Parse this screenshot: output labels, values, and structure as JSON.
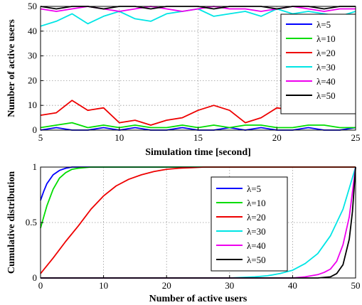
{
  "chart_data": [
    {
      "type": "line",
      "xlabel": "Simulation time [second]",
      "ylabel": "Number of active users",
      "xlim": [
        5,
        25
      ],
      "ylim": [
        0,
        50
      ],
      "xticks": [
        5,
        10,
        15,
        20,
        25
      ],
      "yticks": [
        0,
        10,
        20,
        30,
        40,
        50
      ],
      "grid": true,
      "legend_position": "top-right",
      "series": [
        {
          "name": "λ=5",
          "color": "#0000ff",
          "x": [
            5,
            6,
            7,
            8,
            9,
            10,
            11,
            12,
            13,
            14,
            15,
            16,
            17,
            18,
            19,
            20,
            21,
            22,
            23,
            24,
            25
          ],
          "y": [
            0,
            1,
            0,
            0,
            1,
            0,
            1,
            0,
            0,
            1,
            0,
            0,
            1,
            0,
            1,
            0,
            0,
            1,
            0,
            0,
            1
          ]
        },
        {
          "name": "λ=10",
          "color": "#00dd00",
          "x": [
            5,
            6,
            7,
            8,
            9,
            10,
            11,
            12,
            13,
            14,
            15,
            16,
            17,
            18,
            19,
            20,
            21,
            22,
            23,
            24,
            25
          ],
          "y": [
            1,
            2,
            3,
            1,
            2,
            1,
            2,
            1,
            1,
            2,
            1,
            2,
            1,
            2,
            2,
            1,
            1,
            2,
            2,
            1,
            1
          ]
        },
        {
          "name": "λ=20",
          "color": "#ee0000",
          "x": [
            5,
            6,
            7,
            8,
            9,
            10,
            11,
            12,
            13,
            14,
            15,
            16,
            17,
            18,
            19,
            20,
            21,
            22,
            23,
            24,
            25
          ],
          "y": [
            6,
            7,
            12,
            8,
            9,
            3,
            4,
            2,
            4,
            5,
            8,
            10,
            8,
            3,
            5,
            9,
            8,
            9,
            10,
            12,
            10
          ]
        },
        {
          "name": "λ=30",
          "color": "#00e5e5",
          "x": [
            5,
            6,
            7,
            8,
            9,
            10,
            11,
            12,
            13,
            14,
            15,
            16,
            17,
            18,
            19,
            20,
            21,
            22,
            23,
            24,
            25
          ],
          "y": [
            42,
            44,
            47,
            43,
            46,
            48,
            45,
            44,
            47,
            48,
            49,
            46,
            47,
            48,
            46,
            49,
            47,
            48,
            47,
            46,
            48
          ]
        },
        {
          "name": "λ=40",
          "color": "#ee00ee",
          "x": [
            5,
            6,
            7,
            8,
            9,
            10,
            11,
            12,
            13,
            14,
            15,
            16,
            17,
            18,
            19,
            20,
            21,
            22,
            23,
            24,
            25
          ],
          "y": [
            49,
            48,
            49,
            50,
            49,
            48,
            49,
            50,
            49,
            48,
            49,
            50,
            49,
            49,
            48,
            49,
            50,
            49,
            48,
            49,
            49
          ]
        },
        {
          "name": "λ=50",
          "color": "#000000",
          "x": [
            5,
            6,
            7,
            8,
            9,
            10,
            11,
            12,
            13,
            14,
            15,
            16,
            17,
            18,
            19,
            20,
            21,
            22,
            23,
            24,
            25
          ],
          "y": [
            50,
            49,
            50,
            50,
            49,
            50,
            50,
            49,
            50,
            50,
            50,
            49,
            50,
            50,
            50,
            49,
            50,
            50,
            49,
            50,
            50
          ]
        }
      ]
    },
    {
      "type": "line",
      "xlabel": "Number of active users",
      "ylabel": "Cumulative distribution",
      "xlim": [
        0,
        50
      ],
      "ylim": [
        0,
        1
      ],
      "xticks": [
        0,
        10,
        20,
        30,
        40,
        50
      ],
      "yticks": [
        0,
        0.5,
        1
      ],
      "ytick_labels": [
        "0",
        "0.5",
        "1"
      ],
      "grid": true,
      "legend_position": "center-right",
      "series": [
        {
          "name": "λ=5",
          "color": "#0000ff",
          "x": [
            0,
            0.5,
            1,
            2,
            3,
            4,
            5,
            50
          ],
          "y": [
            0.7,
            0.78,
            0.85,
            0.93,
            0.97,
            0.99,
            1,
            1
          ]
        },
        {
          "name": "λ=10",
          "color": "#00dd00",
          "x": [
            0,
            0.5,
            1,
            2,
            3,
            4,
            5,
            6,
            8,
            50
          ],
          "y": [
            0.45,
            0.55,
            0.65,
            0.8,
            0.9,
            0.95,
            0.98,
            0.99,
            1,
            1
          ]
        },
        {
          "name": "λ=20",
          "color": "#ee0000",
          "x": [
            0,
            2,
            4,
            6,
            8,
            10,
            12,
            14,
            16,
            18,
            20,
            22,
            24,
            26,
            28,
            50
          ],
          "y": [
            0.04,
            0.18,
            0.33,
            0.47,
            0.62,
            0.74,
            0.83,
            0.89,
            0.93,
            0.96,
            0.98,
            0.99,
            0.995,
            1,
            1,
            1
          ]
        },
        {
          "name": "λ=30",
          "color": "#00e5e5",
          "x": [
            0,
            30,
            34,
            36,
            38,
            40,
            42,
            44,
            46,
            48,
            50
          ],
          "y": [
            0,
            0,
            0.01,
            0.02,
            0.04,
            0.07,
            0.13,
            0.22,
            0.38,
            0.62,
            1
          ]
        },
        {
          "name": "λ=40",
          "color": "#ee00ee",
          "x": [
            0,
            40,
            42,
            44,
            45,
            46,
            47,
            48,
            49,
            50
          ],
          "y": [
            0,
            0,
            0.01,
            0.03,
            0.05,
            0.08,
            0.15,
            0.3,
            0.55,
            1
          ]
        },
        {
          "name": "λ=50",
          "color": "#000000",
          "x": [
            0,
            44,
            46,
            47,
            48,
            49,
            49.5,
            50
          ],
          "y": [
            0,
            0,
            0.01,
            0.04,
            0.12,
            0.35,
            0.6,
            1
          ]
        }
      ]
    }
  ]
}
